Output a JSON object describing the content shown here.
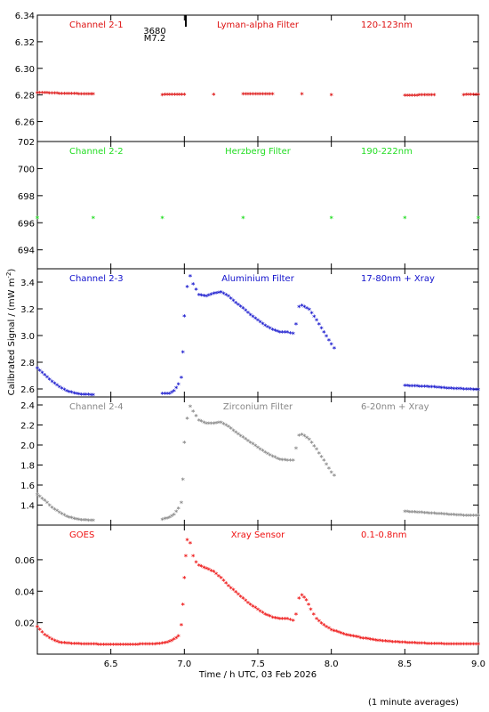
{
  "chart_data": {
    "type": "scatter",
    "xlabel": "Time / h UTC, 03 Feb 2026",
    "ylabel": "Calibrated Signal / (mW m^-2)",
    "ylabel_main": "Calibrated Signal / (mW m",
    "ylabel_exp": "-2",
    "ylabel_close": ")",
    "footnote": "(1 minute averages)",
    "xlim": [
      6.0,
      9.0
    ],
    "xticks": [
      6.5,
      7.0,
      7.5,
      8.0,
      8.5,
      9.0
    ],
    "xtick_labels": [
      "6.5",
      "7.0",
      "7.5",
      "8.0",
      "8.5",
      "9.0"
    ],
    "event": {
      "x": 7.01,
      "label_top": "3680",
      "label_bottom": "M7.2"
    },
    "panels": [
      {
        "channel": "Channel 2-1",
        "filter": "Lyman-alpha Filter",
        "band": "120-123nm",
        "color": "#dd1111",
        "ylim": [
          6.245,
          6.34
        ],
        "yticks": [
          6.26,
          6.28,
          6.3,
          6.32,
          6.34
        ],
        "ytick_labels": [
          "6.26",
          "6.28",
          "6.30",
          "6.32",
          "6.34"
        ],
        "points": [
          [
            6.0,
            6.281
          ],
          [
            6.05,
            6.2812
          ],
          [
            6.1,
            6.2808
          ],
          [
            6.15,
            6.2806
          ],
          [
            6.2,
            6.2806
          ],
          [
            6.25,
            6.2804
          ],
          [
            6.3,
            6.2802
          ],
          [
            6.35,
            6.2802
          ],
          [
            6.38,
            6.2802
          ],
          [
            6.85,
            6.2796
          ],
          [
            7.0,
            6.2798
          ],
          [
            7.2,
            6.2798
          ],
          [
            7.4,
            6.28
          ],
          [
            7.6,
            6.2801
          ],
          [
            7.8,
            6.28
          ],
          [
            8.0,
            6.2796
          ],
          [
            8.5,
            6.2792
          ],
          [
            8.7,
            6.2794
          ],
          [
            8.9,
            6.2796
          ],
          [
            9.0,
            6.2798
          ]
        ]
      },
      {
        "channel": "Channel 2-2",
        "filter": "Herzberg Filter",
        "band": "190-222nm",
        "color": "#22dd22",
        "ylim": [
          692.6,
          702.0
        ],
        "yticks": [
          694,
          696,
          698,
          700,
          702
        ],
        "ytick_labels": [
          "694",
          "696",
          "698",
          "700",
          "702"
        ],
        "points": [
          [
            6.0,
            696.3
          ],
          [
            6.38,
            696.3
          ],
          [
            6.85,
            696.3
          ],
          [
            7.4,
            696.3
          ],
          [
            8.0,
            696.3
          ],
          [
            8.5,
            696.3
          ],
          [
            9.0,
            696.3
          ]
        ]
      },
      {
        "channel": "Channel 2-3",
        "filter": "Aluminium Filter",
        "band": "17-80nm + Xray",
        "color": "#1111cc",
        "ylim": [
          2.54,
          3.5
        ],
        "yticks": [
          2.6,
          2.8,
          3.0,
          3.2,
          3.4
        ],
        "ytick_labels": [
          "2.6",
          "2.8",
          "3.0",
          "3.2",
          "3.4"
        ],
        "points": [
          [
            6.0,
            2.75
          ],
          [
            6.05,
            2.7
          ],
          [
            6.1,
            2.65
          ],
          [
            6.15,
            2.61
          ],
          [
            6.2,
            2.58
          ],
          [
            6.25,
            2.565
          ],
          [
            6.3,
            2.555
          ],
          [
            6.38,
            2.55
          ],
          [
            6.85,
            2.56
          ],
          [
            6.9,
            2.56
          ],
          [
            6.93,
            2.58
          ],
          [
            6.96,
            2.63
          ],
          [
            6.98,
            2.68
          ],
          [
            6.99,
            2.87
          ],
          [
            7.0,
            3.14
          ],
          [
            7.02,
            3.36
          ],
          [
            7.04,
            3.44
          ],
          [
            7.06,
            3.38
          ],
          [
            7.1,
            3.3
          ],
          [
            7.15,
            3.29
          ],
          [
            7.2,
            3.31
          ],
          [
            7.25,
            3.32
          ],
          [
            7.3,
            3.29
          ],
          [
            7.35,
            3.24
          ],
          [
            7.4,
            3.2
          ],
          [
            7.45,
            3.15
          ],
          [
            7.5,
            3.11
          ],
          [
            7.55,
            3.07
          ],
          [
            7.6,
            3.04
          ],
          [
            7.65,
            3.02
          ],
          [
            7.7,
            3.02
          ],
          [
            7.74,
            3.01
          ],
          [
            7.76,
            3.08
          ],
          [
            7.78,
            3.21
          ],
          [
            7.8,
            3.22
          ],
          [
            7.85,
            3.19
          ],
          [
            7.9,
            3.11
          ],
          [
            7.95,
            3.02
          ],
          [
            8.0,
            2.93
          ],
          [
            8.02,
            2.9
          ],
          [
            8.5,
            2.62
          ],
          [
            8.6,
            2.615
          ],
          [
            8.7,
            2.61
          ],
          [
            8.8,
            2.6
          ],
          [
            8.9,
            2.595
          ],
          [
            9.0,
            2.59
          ]
        ]
      },
      {
        "channel": "Channel 2-4",
        "filter": "Zirconium Filter",
        "band": "6-20nm + Xray",
        "color": "#888888",
        "ylim": [
          1.2,
          2.48
        ],
        "yticks": [
          1.4,
          1.6,
          1.8,
          2.0,
          2.2,
          2.4
        ],
        "ytick_labels": [
          "1.4",
          "1.6",
          "1.8",
          "2.0",
          "2.2",
          "2.4"
        ],
        "points": [
          [
            6.0,
            1.5
          ],
          [
            6.05,
            1.44
          ],
          [
            6.1,
            1.37
          ],
          [
            6.15,
            1.32
          ],
          [
            6.2,
            1.28
          ],
          [
            6.25,
            1.26
          ],
          [
            6.3,
            1.245
          ],
          [
            6.38,
            1.24
          ],
          [
            6.85,
            1.25
          ],
          [
            6.9,
            1.27
          ],
          [
            6.93,
            1.3
          ],
          [
            6.96,
            1.36
          ],
          [
            6.98,
            1.42
          ],
          [
            6.99,
            1.65
          ],
          [
            7.0,
            2.02
          ],
          [
            7.02,
            2.26
          ],
          [
            7.04,
            2.38
          ],
          [
            7.06,
            2.33
          ],
          [
            7.1,
            2.24
          ],
          [
            7.15,
            2.21
          ],
          [
            7.2,
            2.21
          ],
          [
            7.25,
            2.22
          ],
          [
            7.3,
            2.18
          ],
          [
            7.35,
            2.12
          ],
          [
            7.4,
            2.07
          ],
          [
            7.45,
            2.02
          ],
          [
            7.5,
            1.97
          ],
          [
            7.55,
            1.92
          ],
          [
            7.6,
            1.88
          ],
          [
            7.65,
            1.85
          ],
          [
            7.7,
            1.84
          ],
          [
            7.74,
            1.84
          ],
          [
            7.76,
            1.96
          ],
          [
            7.78,
            2.09
          ],
          [
            7.8,
            2.1
          ],
          [
            7.85,
            2.05
          ],
          [
            7.9,
            1.95
          ],
          [
            7.95,
            1.84
          ],
          [
            8.0,
            1.72
          ],
          [
            8.02,
            1.69
          ],
          [
            8.5,
            1.33
          ],
          [
            8.6,
            1.32
          ],
          [
            8.7,
            1.31
          ],
          [
            8.8,
            1.3
          ],
          [
            8.9,
            1.29
          ],
          [
            9.0,
            1.29
          ]
        ]
      },
      {
        "channel": "GOES",
        "filter": "Xray Sensor",
        "band": "0.1-0.8nm",
        "color": "#ee1111",
        "ylim": [
          0.0,
          0.082
        ],
        "yticks": [
          0.02,
          0.04,
          0.06
        ],
        "ytick_labels": [
          "0.02",
          "0.04",
          "0.06"
        ],
        "points": [
          [
            6.0,
            0.017
          ],
          [
            6.05,
            0.012
          ],
          [
            6.1,
            0.009
          ],
          [
            6.15,
            0.007
          ],
          [
            6.2,
            0.0065
          ],
          [
            6.3,
            0.006
          ],
          [
            6.4,
            0.0058
          ],
          [
            6.5,
            0.0057
          ],
          [
            6.6,
            0.0057
          ],
          [
            6.7,
            0.0058
          ],
          [
            6.8,
            0.006
          ],
          [
            6.85,
            0.0065
          ],
          [
            6.9,
            0.0075
          ],
          [
            6.93,
            0.009
          ],
          [
            6.96,
            0.011
          ],
          [
            6.98,
            0.018
          ],
          [
            6.99,
            0.031
          ],
          [
            7.0,
            0.048
          ],
          [
            7.01,
            0.062
          ],
          [
            7.02,
            0.072
          ],
          [
            7.04,
            0.07
          ],
          [
            7.06,
            0.062
          ],
          [
            7.08,
            0.058
          ],
          [
            7.1,
            0.056
          ],
          [
            7.15,
            0.054
          ],
          [
            7.2,
            0.052
          ],
          [
            7.25,
            0.048
          ],
          [
            7.3,
            0.043
          ],
          [
            7.35,
            0.039
          ],
          [
            7.4,
            0.035
          ],
          [
            7.45,
            0.031
          ],
          [
            7.5,
            0.028
          ],
          [
            7.55,
            0.025
          ],
          [
            7.6,
            0.023
          ],
          [
            7.65,
            0.022
          ],
          [
            7.7,
            0.022
          ],
          [
            7.74,
            0.021
          ],
          [
            7.76,
            0.025
          ],
          [
            7.78,
            0.035
          ],
          [
            7.8,
            0.037
          ],
          [
            7.83,
            0.034
          ],
          [
            7.86,
            0.028
          ],
          [
            7.9,
            0.022
          ],
          [
            7.95,
            0.018
          ],
          [
            8.0,
            0.015
          ],
          [
            8.1,
            0.012
          ],
          [
            8.2,
            0.01
          ],
          [
            8.3,
            0.0085
          ],
          [
            8.4,
            0.0075
          ],
          [
            8.5,
            0.007
          ],
          [
            8.6,
            0.0065
          ],
          [
            8.7,
            0.0062
          ],
          [
            8.8,
            0.006
          ],
          [
            8.9,
            0.0058
          ],
          [
            9.0,
            0.0058
          ]
        ]
      }
    ]
  }
}
